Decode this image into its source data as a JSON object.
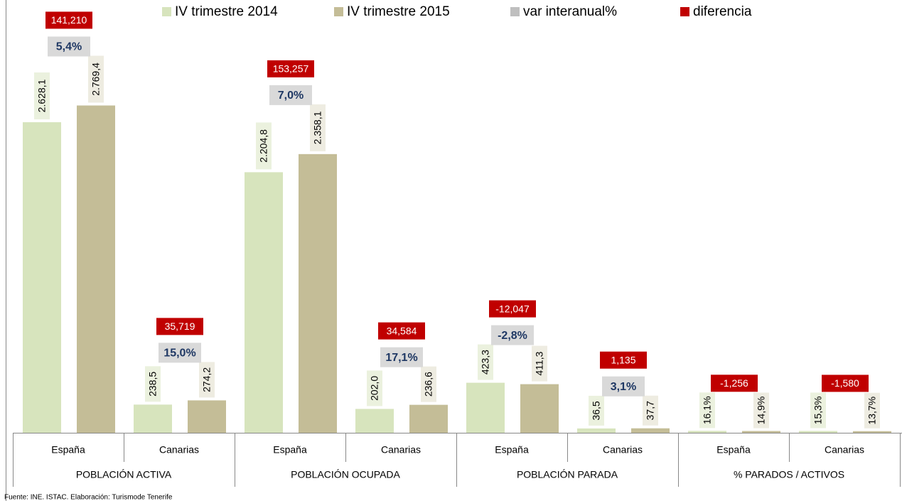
{
  "chart_data": {
    "type": "bar",
    "categories": [
      "España",
      "Canarias",
      "España",
      "Canarias",
      "España",
      "Canarias",
      "España",
      "Canarias"
    ],
    "groups": [
      "POBLACIÓN ACTIVA",
      "POBLACIÓN OCUPADA",
      "POBLACIÓN PARADA",
      "% PARADOS / ACTIVOS"
    ],
    "series": [
      {
        "name": "IV trimestre 2014",
        "color": "#d7e4bd",
        "label_color": "#ebf1de",
        "values": [
          2628.1,
          238.5,
          2204.8,
          202.0,
          423.3,
          36.5,
          16.1,
          15.3
        ],
        "value_labels": [
          "2.628,1",
          "238,5",
          "2.204,8",
          "202,0",
          "423,3",
          "36,5",
          "16,1%",
          "15,3%"
        ]
      },
      {
        "name": "IV trimestre 2015",
        "color": "#c4bd97",
        "label_color": "#eeece1",
        "values": [
          2769.4,
          274.2,
          2358.1,
          236.6,
          411.3,
          37.7,
          14.9,
          13.7
        ],
        "value_labels": [
          "2.769,4",
          "274,2",
          "2.358,1",
          "236,6",
          "411,3",
          "37,7",
          "14,9%",
          "13,7%"
        ]
      },
      {
        "name": "var interanual%",
        "color": "#bfbfbf",
        "label_color": "#d9d9d9",
        "values": [
          5.4,
          15.0,
          7.0,
          17.1,
          -2.8,
          3.1,
          null,
          null
        ],
        "value_labels": [
          "5,4%",
          "15,0%",
          "7,0%",
          "17,1%",
          "-2,8%",
          "3,1%",
          null,
          null
        ]
      },
      {
        "name": "diferencia",
        "color": "#c00000",
        "label_color": "#c00000",
        "values": [
          141.21,
          35.719,
          153.257,
          34.584,
          -12.047,
          1.135,
          -1.256,
          -1.58
        ],
        "value_labels": [
          "141,210",
          "35,719",
          "153,257",
          "34,584",
          "-12,047",
          "1,135",
          "-1,256",
          "-1,580"
        ]
      }
    ],
    "source": "Fuente: INE. ISTAC. Elaboración: Turismode Tenerife"
  }
}
